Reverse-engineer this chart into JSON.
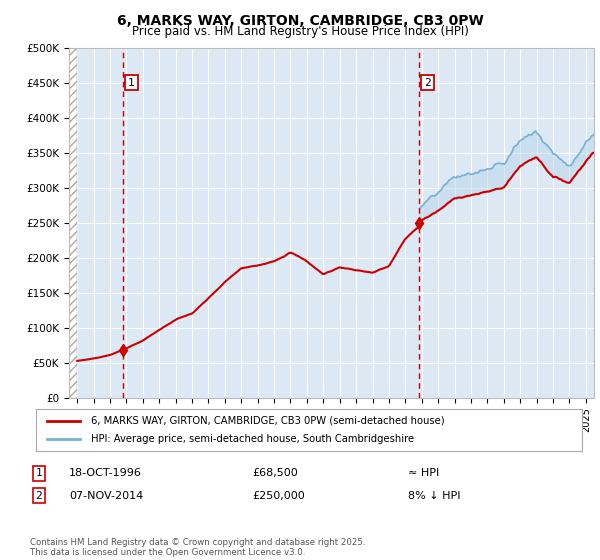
{
  "title": "6, MARKS WAY, GIRTON, CAMBRIDGE, CB3 0PW",
  "subtitle": "Price paid vs. HM Land Registry's House Price Index (HPI)",
  "legend_entry1": "6, MARKS WAY, GIRTON, CAMBRIDGE, CB3 0PW (semi-detached house)",
  "legend_entry2": "HPI: Average price, semi-detached house, South Cambridgeshire",
  "footnote": "Contains HM Land Registry data © Crown copyright and database right 2025.\nThis data is licensed under the Open Government Licence v3.0.",
  "sale1_date": "18-OCT-1996",
  "sale1_price": 68500,
  "sale1_note": "≈ HPI",
  "sale2_date": "07-NOV-2014",
  "sale2_price": 250000,
  "sale2_note": "8% ↓ HPI",
  "sale1_x": 1996.8,
  "sale2_x": 2014.85,
  "ylim": [
    0,
    500000
  ],
  "xlim": [
    1993.5,
    2025.5
  ],
  "background_color": "#dce9f5",
  "red_line_color": "#cc0000",
  "blue_line_color": "#7ab0d4",
  "blue_fill_color": "#b8d4e8",
  "grid_color": "#ffffff",
  "vline_color": "#cc0000",
  "marker_box_color": "#cc0000",
  "hpi_base_year": 1996,
  "hpi_base_value": 72000,
  "sale1_value": 68500,
  "sale2_value": 250000
}
